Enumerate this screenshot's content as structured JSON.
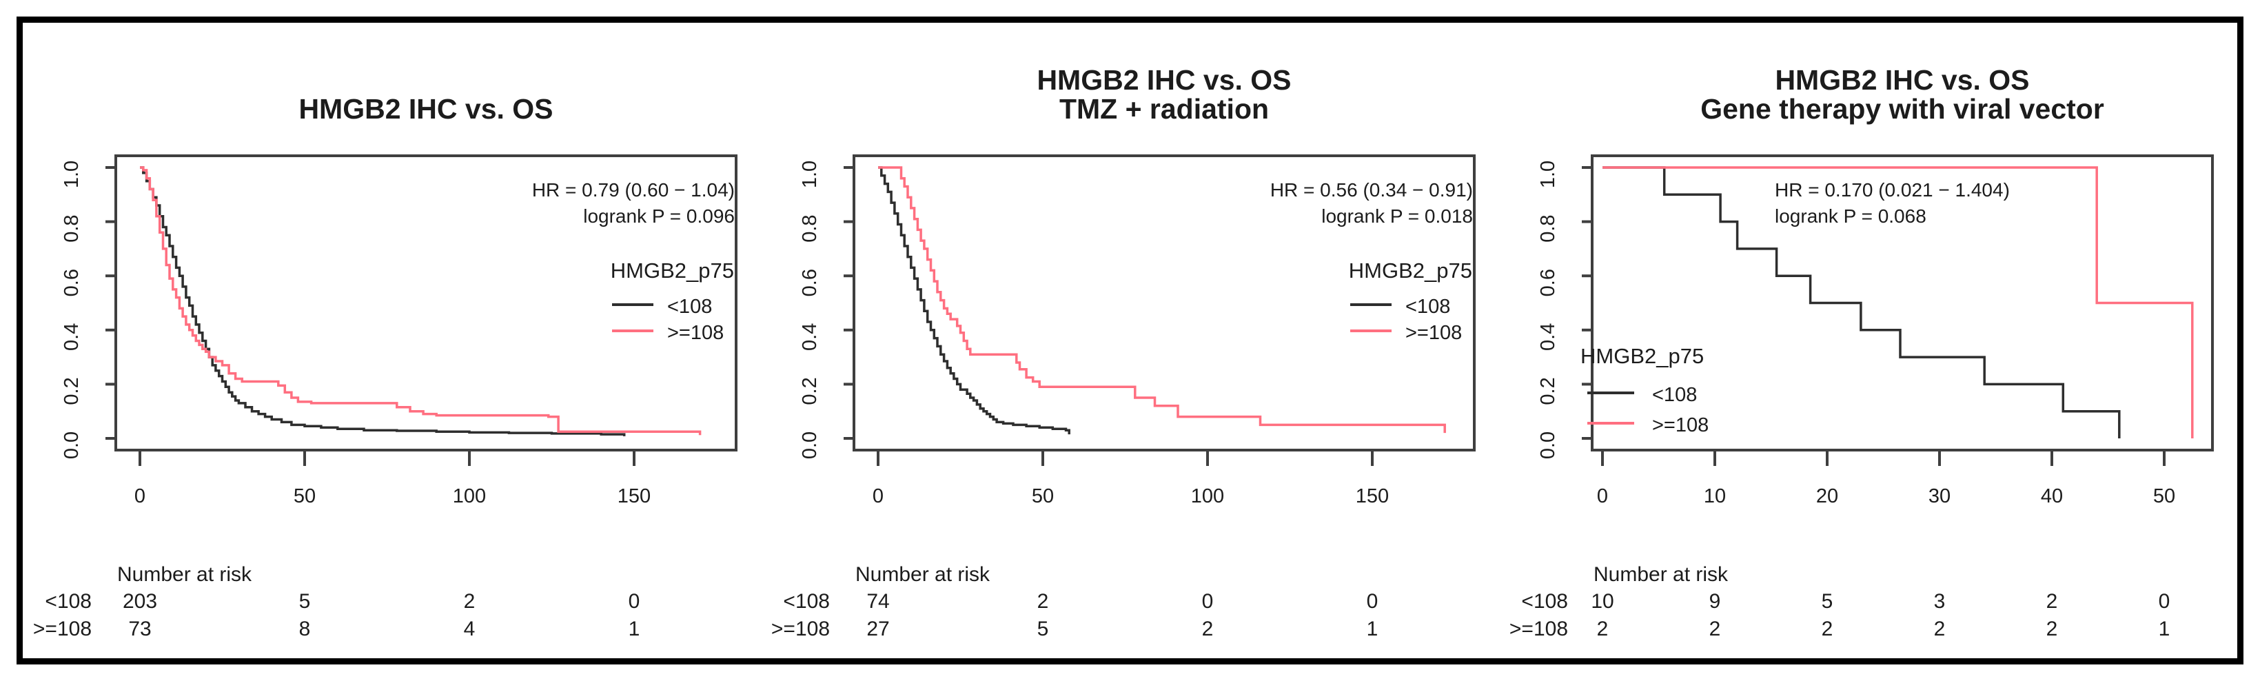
{
  "figure": {
    "background": "#ffffff",
    "outer_border_color": "#000000",
    "axis_color": "#3f3f3f",
    "text_color": "#1c1c1c",
    "group_colors": {
      "low": "#2e2e2e",
      "high": "#ff6f80"
    }
  },
  "chart_data": [
    {
      "type": "line",
      "subtype": "kaplan-meier",
      "title": "HMGB2 IHC vs. OS",
      "subtitle": "",
      "annotations": {
        "hr": "HR = 0.79 (0.60 − 1.04)",
        "logrank": "logrank P = 0.096",
        "align": "right"
      },
      "legend": {
        "title": "HMGB2_p75",
        "position": "right",
        "entries": [
          {
            "label": "<108",
            "color": "#2e2e2e"
          },
          {
            "label": ">=108",
            "color": "#ff6f80"
          }
        ]
      },
      "xticks": [
        0,
        50,
        100,
        150
      ],
      "yticks": [
        "1.0",
        "0.8",
        "0.6",
        "0.4",
        "0.2",
        "0.0"
      ],
      "ylim": [
        0,
        1
      ],
      "series": [
        {
          "name": "<108",
          "color": "#2e2e2e",
          "steps": [
            [
              0,
              1.0
            ],
            [
              1,
              0.98
            ],
            [
              2,
              0.95
            ],
            [
              3,
              0.92
            ],
            [
              4,
              0.89
            ],
            [
              5,
              0.86
            ],
            [
              6,
              0.82
            ],
            [
              7,
              0.78
            ],
            [
              8,
              0.75
            ],
            [
              9,
              0.71
            ],
            [
              10,
              0.67
            ],
            [
              11,
              0.63
            ],
            [
              12,
              0.6
            ],
            [
              13,
              0.56
            ],
            [
              14,
              0.52
            ],
            [
              15,
              0.49
            ],
            [
              16,
              0.45
            ],
            [
              17,
              0.42
            ],
            [
              18,
              0.39
            ],
            [
              19,
              0.36
            ],
            [
              20,
              0.33
            ],
            [
              21,
              0.3
            ],
            [
              22,
              0.27
            ],
            [
              23,
              0.25
            ],
            [
              24,
              0.23
            ],
            [
              25,
              0.21
            ],
            [
              26,
              0.19
            ],
            [
              27,
              0.17
            ],
            [
              28,
              0.155
            ],
            [
              29,
              0.14
            ],
            [
              30,
              0.13
            ],
            [
              32,
              0.115
            ],
            [
              34,
              0.1
            ],
            [
              36,
              0.09
            ],
            [
              38,
              0.08
            ],
            [
              40,
              0.07
            ],
            [
              43,
              0.06
            ],
            [
              46,
              0.05
            ],
            [
              50,
              0.045
            ],
            [
              55,
              0.04
            ],
            [
              60,
              0.035
            ],
            [
              68,
              0.03
            ],
            [
              78,
              0.028
            ],
            [
              90,
              0.025
            ],
            [
              100,
              0.022
            ],
            [
              112,
              0.02
            ],
            [
              125,
              0.018
            ],
            [
              140,
              0.015
            ],
            [
              147,
              0.008
            ]
          ]
        },
        {
          "name": ">=108",
          "color": "#ff6f80",
          "steps": [
            [
              0,
              1.0
            ],
            [
              1,
              0.99
            ],
            [
              2,
              0.96
            ],
            [
              3,
              0.92
            ],
            [
              4,
              0.88
            ],
            [
              5,
              0.82
            ],
            [
              6,
              0.76
            ],
            [
              7,
              0.7
            ],
            [
              8,
              0.64
            ],
            [
              9,
              0.59
            ],
            [
              10,
              0.55
            ],
            [
              11,
              0.52
            ],
            [
              12,
              0.48
            ],
            [
              13,
              0.45
            ],
            [
              14,
              0.42
            ],
            [
              15,
              0.4
            ],
            [
              16,
              0.38
            ],
            [
              17,
              0.36
            ],
            [
              18,
              0.345
            ],
            [
              19,
              0.33
            ],
            [
              20,
              0.32
            ],
            [
              21,
              0.3
            ],
            [
              23,
              0.285
            ],
            [
              25,
              0.27
            ],
            [
              27,
              0.24
            ],
            [
              29,
              0.22
            ],
            [
              31,
              0.21
            ],
            [
              42,
              0.195
            ],
            [
              44,
              0.17
            ],
            [
              46,
              0.15
            ],
            [
              48,
              0.135
            ],
            [
              52,
              0.13
            ],
            [
              78,
              0.115
            ],
            [
              82,
              0.1
            ],
            [
              86,
              0.09
            ],
            [
              90,
              0.085
            ],
            [
              124,
              0.08
            ],
            [
              127,
              0.025
            ],
            [
              168,
              0.025
            ],
            [
              170,
              0.012
            ]
          ]
        }
      ],
      "number_at_risk": {
        "header": "Number at risk",
        "times": [
          0,
          50,
          100,
          150
        ],
        "rows": [
          {
            "label": "<108",
            "counts": [
              "203",
              "5",
              "2",
              "0"
            ]
          },
          {
            "label": ">=108",
            "counts": [
              "73",
              "8",
              "4",
              "1"
            ]
          }
        ]
      }
    },
    {
      "type": "line",
      "subtype": "kaplan-meier",
      "title": "HMGB2 IHC vs. OS",
      "subtitle": "TMZ + radiation",
      "annotations": {
        "hr": "HR = 0.56 (0.34 − 0.91)",
        "logrank": "logrank P = 0.018",
        "align": "right"
      },
      "legend": {
        "title": "HMGB2_p75",
        "position": "right",
        "entries": [
          {
            "label": "<108",
            "color": "#2e2e2e"
          },
          {
            "label": ">=108",
            "color": "#ff6f80"
          }
        ]
      },
      "xticks": [
        0,
        50,
        100,
        150
      ],
      "yticks": [
        "1.0",
        "0.8",
        "0.6",
        "0.4",
        "0.2",
        "0.0"
      ],
      "ylim": [
        0,
        1
      ],
      "series": [
        {
          "name": "<108",
          "color": "#2e2e2e",
          "steps": [
            [
              0,
              1.0
            ],
            [
              1,
              0.97
            ],
            [
              2,
              0.94
            ],
            [
              3,
              0.91
            ],
            [
              4,
              0.87
            ],
            [
              5,
              0.83
            ],
            [
              6,
              0.79
            ],
            [
              7,
              0.75
            ],
            [
              8,
              0.71
            ],
            [
              9,
              0.67
            ],
            [
              10,
              0.63
            ],
            [
              11,
              0.59
            ],
            [
              12,
              0.55
            ],
            [
              13,
              0.51
            ],
            [
              14,
              0.47
            ],
            [
              15,
              0.43
            ],
            [
              16,
              0.4
            ],
            [
              17,
              0.37
            ],
            [
              18,
              0.34
            ],
            [
              19,
              0.31
            ],
            [
              20,
              0.285
            ],
            [
              21,
              0.26
            ],
            [
              22,
              0.24
            ],
            [
              23,
              0.22
            ],
            [
              24,
              0.2
            ],
            [
              25,
              0.18
            ],
            [
              27,
              0.165
            ],
            [
              28,
              0.15
            ],
            [
              29,
              0.14
            ],
            [
              30,
              0.125
            ],
            [
              31,
              0.11
            ],
            [
              32,
              0.1
            ],
            [
              33,
              0.09
            ],
            [
              34,
              0.08
            ],
            [
              35,
              0.07
            ],
            [
              36,
              0.06
            ],
            [
              38,
              0.055
            ],
            [
              41,
              0.05
            ],
            [
              45,
              0.045
            ],
            [
              49,
              0.04
            ],
            [
              53,
              0.035
            ],
            [
              57,
              0.03
            ],
            [
              58,
              0.015
            ]
          ]
        },
        {
          "name": ">=108",
          "color": "#ff6f80",
          "steps": [
            [
              0,
              1.0
            ],
            [
              7,
              0.96
            ],
            [
              8,
              0.93
            ],
            [
              9,
              0.89
            ],
            [
              10,
              0.85
            ],
            [
              11,
              0.81
            ],
            [
              12,
              0.77
            ],
            [
              13,
              0.73
            ],
            [
              14,
              0.7
            ],
            [
              15,
              0.66
            ],
            [
              16,
              0.62
            ],
            [
              17,
              0.58
            ],
            [
              18,
              0.54
            ],
            [
              19,
              0.51
            ],
            [
              20,
              0.48
            ],
            [
              21,
              0.46
            ],
            [
              22,
              0.44
            ],
            [
              24,
              0.415
            ],
            [
              25,
              0.39
            ],
            [
              26,
              0.36
            ],
            [
              27,
              0.33
            ],
            [
              28,
              0.31
            ],
            [
              42,
              0.28
            ],
            [
              43,
              0.255
            ],
            [
              45,
              0.225
            ],
            [
              47,
              0.21
            ],
            [
              49,
              0.19
            ],
            [
              78,
              0.15
            ],
            [
              84,
              0.12
            ],
            [
              91,
              0.08
            ],
            [
              116,
              0.05
            ],
            [
              171,
              0.05
            ],
            [
              172,
              0.02
            ]
          ]
        }
      ],
      "number_at_risk": {
        "header": "Number at risk",
        "times": [
          0,
          50,
          100,
          150
        ],
        "rows": [
          {
            "label": "<108",
            "counts": [
              "74",
              "2",
              "0",
              "0"
            ]
          },
          {
            "label": ">=108",
            "counts": [
              "27",
              "5",
              "2",
              "1"
            ]
          }
        ]
      }
    },
    {
      "type": "line",
      "subtype": "kaplan-meier",
      "title": "HMGB2 IHC vs. OS",
      "subtitle": "Gene therapy with viral vector",
      "annotations": {
        "hr": "HR = 0.170 (0.021 − 1.404)",
        "logrank": "logrank P = 0.068",
        "align": "left"
      },
      "legend": {
        "title": "HMGB2_p75",
        "position": "left",
        "entries": [
          {
            "label": "<108",
            "color": "#2e2e2e"
          },
          {
            "label": ">=108",
            "color": "#ff6f80"
          }
        ]
      },
      "xticks": [
        0,
        10,
        20,
        30,
        40,
        50
      ],
      "yticks": [
        "1.0",
        "0.8",
        "0.6",
        "0.4",
        "0.2",
        "0.0"
      ],
      "ylim": [
        0,
        1
      ],
      "series": [
        {
          "name": "<108",
          "color": "#2e2e2e",
          "steps": [
            [
              0,
              1.0
            ],
            [
              5.5,
              0.9
            ],
            [
              10.5,
              0.8
            ],
            [
              12,
              0.7
            ],
            [
              15.5,
              0.6
            ],
            [
              18.5,
              0.5
            ],
            [
              23,
              0.4
            ],
            [
              26.5,
              0.3
            ],
            [
              34,
              0.2
            ],
            [
              41,
              0.1
            ],
            [
              46,
              0.0
            ]
          ]
        },
        {
          "name": ">=108",
          "color": "#ff6f80",
          "steps": [
            [
              0,
              1.0
            ],
            [
              44,
              0.5
            ],
            [
              52.5,
              0.0
            ]
          ]
        }
      ],
      "number_at_risk": {
        "header": "Number at risk",
        "times": [
          0,
          10,
          20,
          30,
          40,
          50
        ],
        "rows": [
          {
            "label": "<108",
            "counts": [
              "10",
              "9",
              "5",
              "3",
              "2",
              "0"
            ]
          },
          {
            "label": ">=108",
            "counts": [
              "2",
              "2",
              "2",
              "2",
              "2",
              "1"
            ]
          }
        ]
      }
    }
  ]
}
